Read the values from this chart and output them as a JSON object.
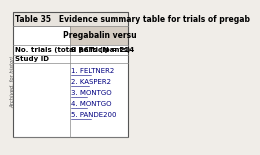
{
  "title": "Table 35   Evidence summary table for trials of pregab",
  "header_col": "Pregabalin versu",
  "row1_label": "No. trials (total participants)",
  "row1_value": "8 RCTs (N = 214",
  "row2_label": "Study ID",
  "study_ids": [
    "1. FELTNER2",
    "2. KASPER2",
    "3. MONTGO",
    "4. MONTGO",
    "5. PANDE200"
  ],
  "sidebar_text": "Archived, for histori",
  "bg_color": "#f0ede8",
  "header_bg": "#c8bfb0",
  "table_bg": "#ffffff",
  "border_color": "#888888",
  "text_color": "#000000",
  "link_color": "#000080",
  "title_fontsize": 5.5,
  "cell_fontsize": 5.0,
  "header_fontsize": 5.5
}
